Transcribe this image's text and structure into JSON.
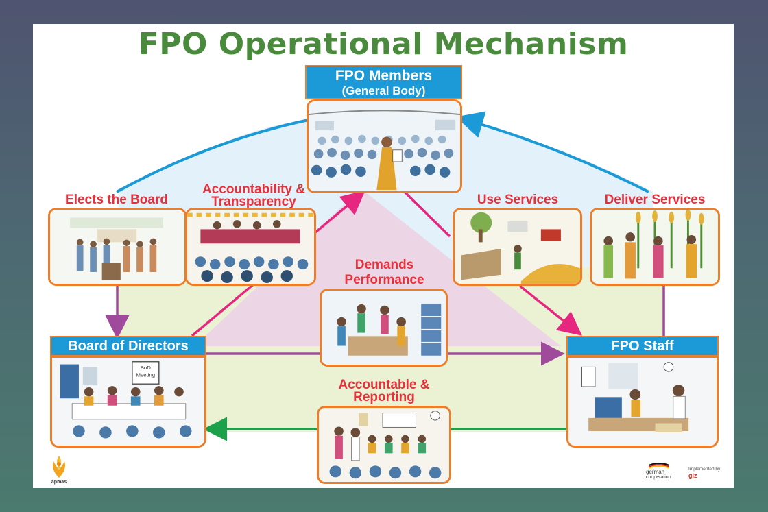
{
  "title": "FPO Operational Mechanism",
  "nodes": {
    "members": {
      "line1": "FPO Members",
      "line2": "(General Body)"
    },
    "board": {
      "label": "Board of Directors"
    },
    "staff": {
      "label": "FPO Staff"
    }
  },
  "labels": {
    "elects": "Elects the Board",
    "accountability_1": "Accountability &",
    "accountability_2": "Transparency",
    "use_services": "Use Services",
    "deliver_services": "Deliver Services",
    "demands_1": "Demands",
    "demands_2": "Performance",
    "reporting_1": "Accountable &",
    "reporting_2": "Reporting"
  },
  "illustration_texts": {
    "board_flipchart_1": "BoD",
    "board_flipchart_2": "Meeting"
  },
  "logos": {
    "left_name": "apmas",
    "right_brand_1": "german",
    "right_brand_2": "cooperation",
    "right_impl": "Implemented by",
    "right_giz": "giz"
  },
  "colors": {
    "arrow_blue": "#1b9ad7",
    "arrow_magenta": "#e6267f",
    "arrow_purple": "#a04a9c",
    "arrow_green": "#1aa14a",
    "border_orange": "#ec7d2a",
    "title_green": "#4a8a3c",
    "label_red": "#e8303b"
  }
}
